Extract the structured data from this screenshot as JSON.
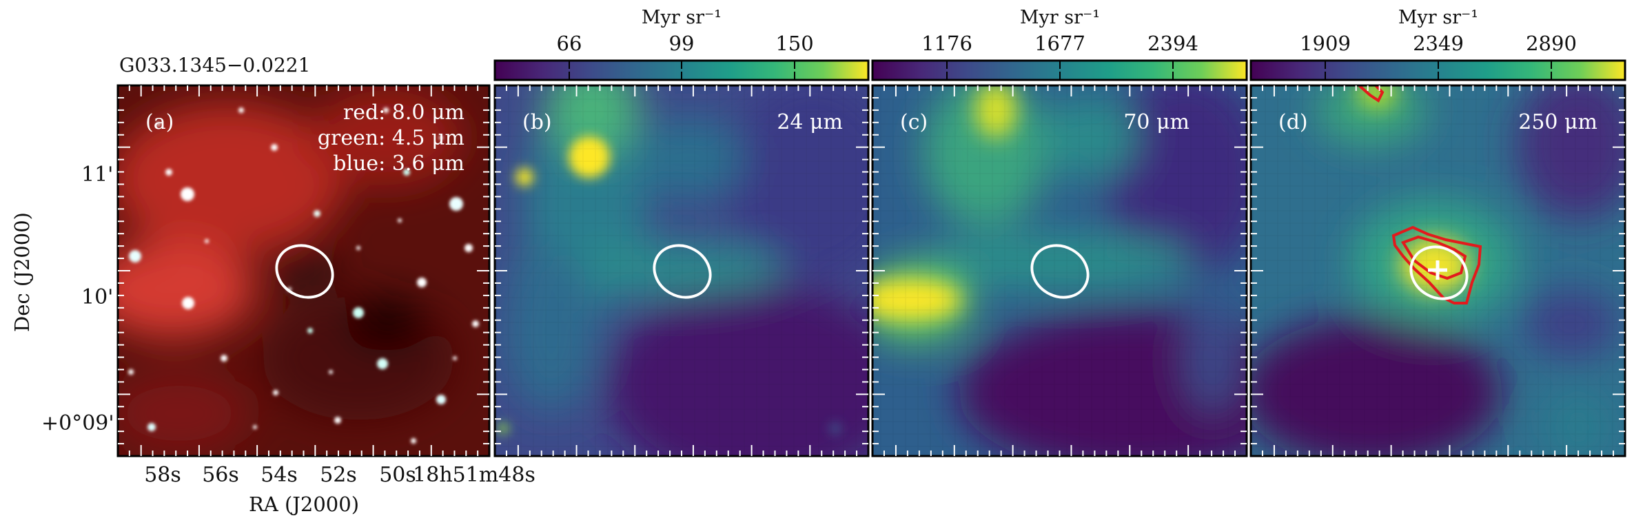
{
  "figure": {
    "source_name": "G033.1345−0.0221",
    "xlabel": "RA (J2000)",
    "ylabel": "Dec (J2000)",
    "ra_ticks": [
      "58s",
      "56s",
      "54s",
      "52s",
      "50s",
      "18h51m48s"
    ],
    "dec_ticks": [
      "11'",
      "10'",
      "+0°09'"
    ]
  },
  "panels": [
    {
      "letter": "(a)",
      "legend": [
        "red: 8.0 μm",
        "green: 4.5 μm",
        "blue: 3.6 μm"
      ],
      "style": "rgb"
    },
    {
      "letter": "(b)",
      "band": "24 μm",
      "colorbar": {
        "unit": "Myr sr⁻¹",
        "ticks": [
          "66",
          "99",
          "150"
        ]
      },
      "style": "viridis"
    },
    {
      "letter": "(c)",
      "band": "70 μm",
      "colorbar": {
        "unit": "Myr sr⁻¹",
        "ticks": [
          "1176",
          "1677",
          "2394"
        ]
      },
      "style": "viridis"
    },
    {
      "letter": "(d)",
      "band": "250 μm",
      "colorbar": {
        "unit": "Myr sr⁻¹",
        "ticks": [
          "1909",
          "2349",
          "2890"
        ]
      },
      "style": "viridis"
    }
  ],
  "colors": {
    "viridis_dark": "#440154",
    "viridis_mid": "#21918c",
    "viridis_bright": "#fde725",
    "ellipse": "#ffffff",
    "contour": "#e31a1c",
    "rgb_background": "#6b1410"
  }
}
